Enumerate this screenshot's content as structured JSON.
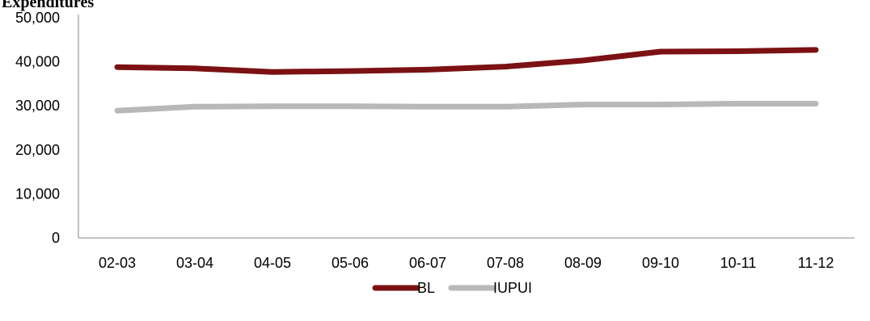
{
  "chart_data": {
    "type": "line",
    "title": "Expenditures",
    "categories": [
      "02-03",
      "03-04",
      "04-05",
      "05-06",
      "06-07",
      "07-08",
      "08-09",
      "09-10",
      "10-11",
      "11-12"
    ],
    "series": [
      {
        "name": "BL",
        "color": "#7b1113",
        "values": [
          38800,
          38500,
          37700,
          37900,
          38200,
          38900,
          40300,
          42300,
          42400,
          42700
        ]
      },
      {
        "name": "IUPUI",
        "color": "#b8b8b8",
        "values": [
          28900,
          29800,
          29900,
          29900,
          29800,
          29800,
          30300,
          30300,
          30500,
          30500
        ]
      }
    ],
    "ylim": [
      0,
      50000
    ],
    "y_ticks": [
      "0",
      "10,000",
      "20,000",
      "30,000",
      "40,000",
      "50,000"
    ],
    "xlabel": "",
    "ylabel": "",
    "grid": false,
    "legend_position": "bottom"
  }
}
